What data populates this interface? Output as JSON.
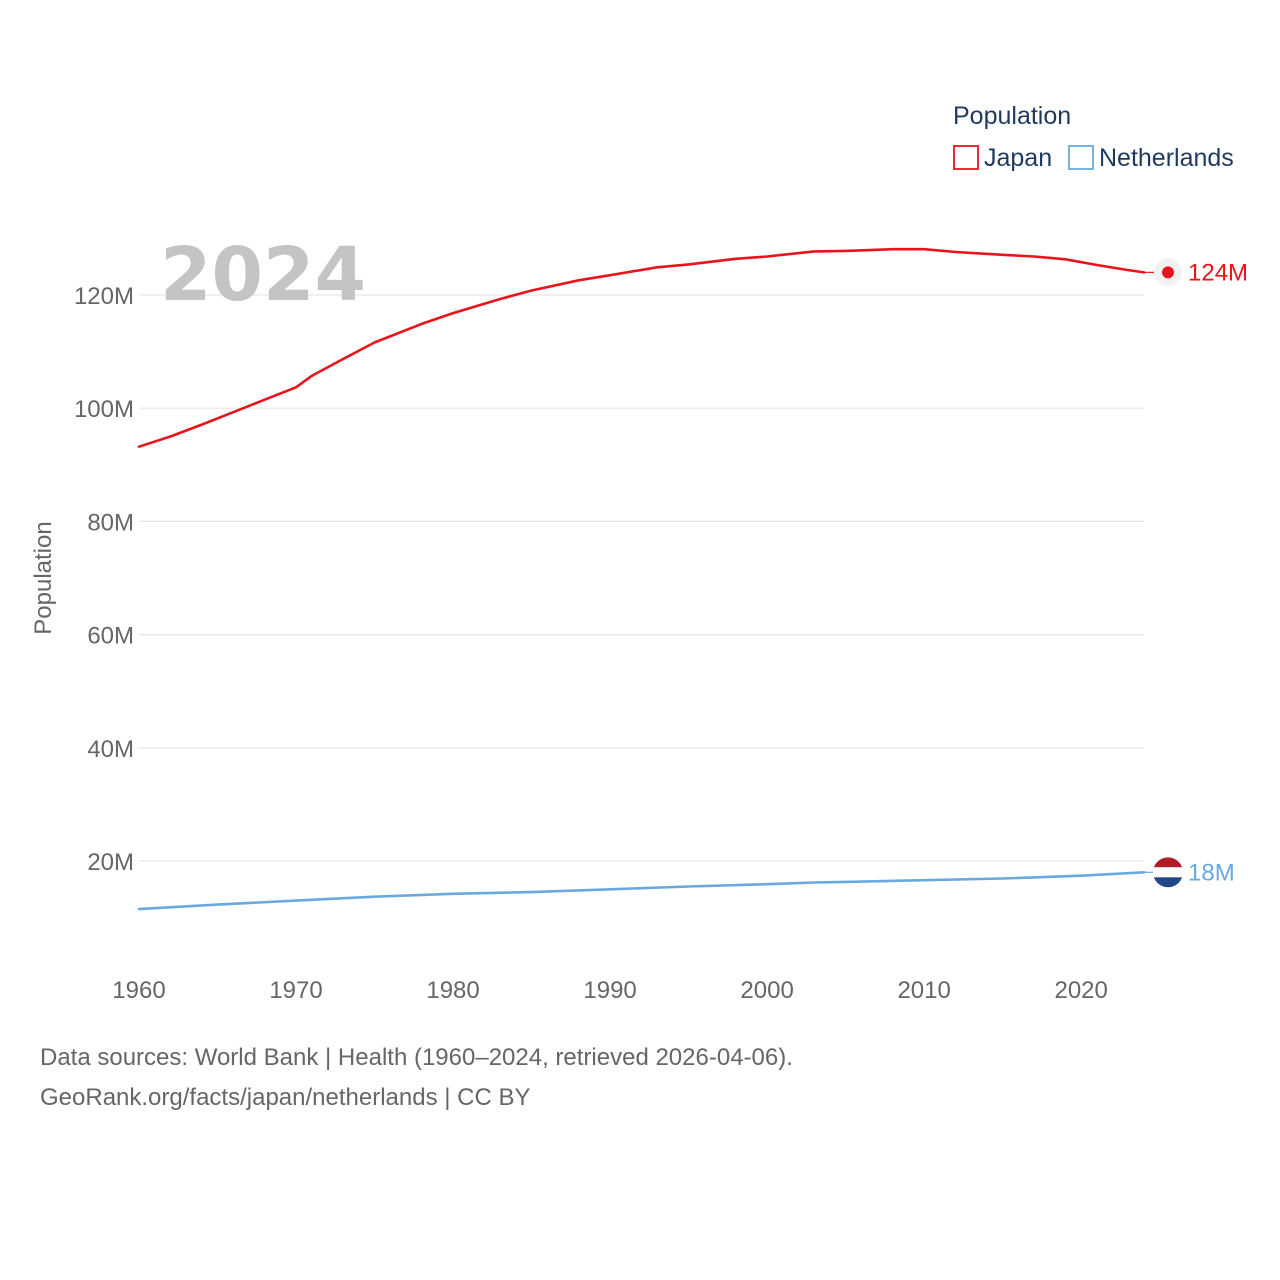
{
  "chart_data": {
    "type": "line",
    "year_label": "2024",
    "ylabel": "Population",
    "xlabel": "",
    "xlim": [
      1960,
      2024
    ],
    "ylim": [
      0,
      130000000
    ],
    "x_ticks": [
      1960,
      1970,
      1980,
      1990,
      2000,
      2010,
      2020
    ],
    "y_ticks": [
      {
        "value": 20000000,
        "label": "20M"
      },
      {
        "value": 40000000,
        "label": "40M"
      },
      {
        "value": 60000000,
        "label": "60M"
      },
      {
        "value": 80000000,
        "label": "80M"
      },
      {
        "value": 100000000,
        "label": "100M"
      },
      {
        "value": 120000000,
        "label": "120M"
      }
    ],
    "grid": true,
    "legend": {
      "title": "Population",
      "placement": "top-right"
    },
    "series": [
      {
        "name": "Japan",
        "color": "#e8141c",
        "end_label": "124M",
        "end_marker": "dot",
        "x": [
          1960,
          1962,
          1964,
          1966,
          1968,
          1970,
          1971,
          1973,
          1975,
          1978,
          1980,
          1983,
          1985,
          1988,
          1990,
          1993,
          1995,
          1998,
          2000,
          2003,
          2005,
          2008,
          2010,
          2012,
          2015,
          2017,
          2019,
          2021,
          2023,
          2024
        ],
        "values": [
          93200000,
          95000000,
          97100000,
          99300000,
          101500000,
          103700000,
          105700000,
          108700000,
          111600000,
          114900000,
          116800000,
          119300000,
          120800000,
          122600000,
          123500000,
          124900000,
          125400000,
          126400000,
          126800000,
          127700000,
          127800000,
          128100000,
          128100000,
          127600000,
          127100000,
          126800000,
          126300000,
          125300000,
          124400000,
          124000000
        ]
      },
      {
        "name": "Netherlands",
        "color": "#6aa9e0",
        "end_label": "18M",
        "end_marker": "flag-netherlands",
        "x": [
          1960,
          1965,
          1970,
          1975,
          1980,
          1985,
          1990,
          1995,
          2000,
          2003,
          2005,
          2010,
          2015,
          2020,
          2024
        ],
        "values": [
          11500000,
          12300000,
          13000000,
          13700000,
          14200000,
          14500000,
          15000000,
          15500000,
          15900000,
          16200000,
          16300000,
          16600000,
          16900000,
          17400000,
          18000000
        ]
      }
    ]
  },
  "footer": {
    "line1": "Data sources: World Bank | Health (1960–2024, retrieved 2026-04-06).",
    "line2": "GeoRank.org/facts/japan/netherlands | CC BY"
  }
}
